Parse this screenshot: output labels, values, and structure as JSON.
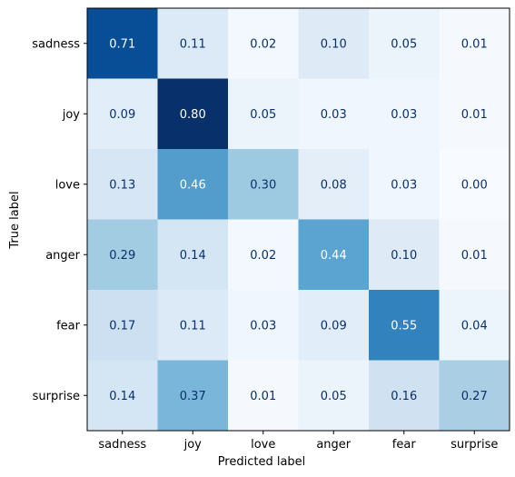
{
  "chart_data": {
    "type": "heatmap",
    "title": "",
    "xlabel": "Predicted label",
    "ylabel": "True label",
    "x_categories": [
      "sadness",
      "joy",
      "love",
      "anger",
      "fear",
      "surprise"
    ],
    "y_categories": [
      "sadness",
      "joy",
      "love",
      "anger",
      "fear",
      "surprise"
    ],
    "values": [
      [
        0.71,
        0.11,
        0.02,
        0.1,
        0.05,
        0.01
      ],
      [
        0.09,
        0.8,
        0.05,
        0.03,
        0.03,
        0.01
      ],
      [
        0.13,
        0.46,
        0.3,
        0.08,
        0.03,
        0.0
      ],
      [
        0.29,
        0.14,
        0.02,
        0.44,
        0.1,
        0.01
      ],
      [
        0.17,
        0.11,
        0.03,
        0.09,
        0.55,
        0.04
      ],
      [
        0.14,
        0.37,
        0.01,
        0.05,
        0.16,
        0.27
      ]
    ],
    "value_format": "0.00",
    "colormap": "Blues",
    "vmin": 0.0,
    "vmax": 0.8,
    "text_color_light": "#ffffff",
    "text_color_dark": "#08306b"
  }
}
